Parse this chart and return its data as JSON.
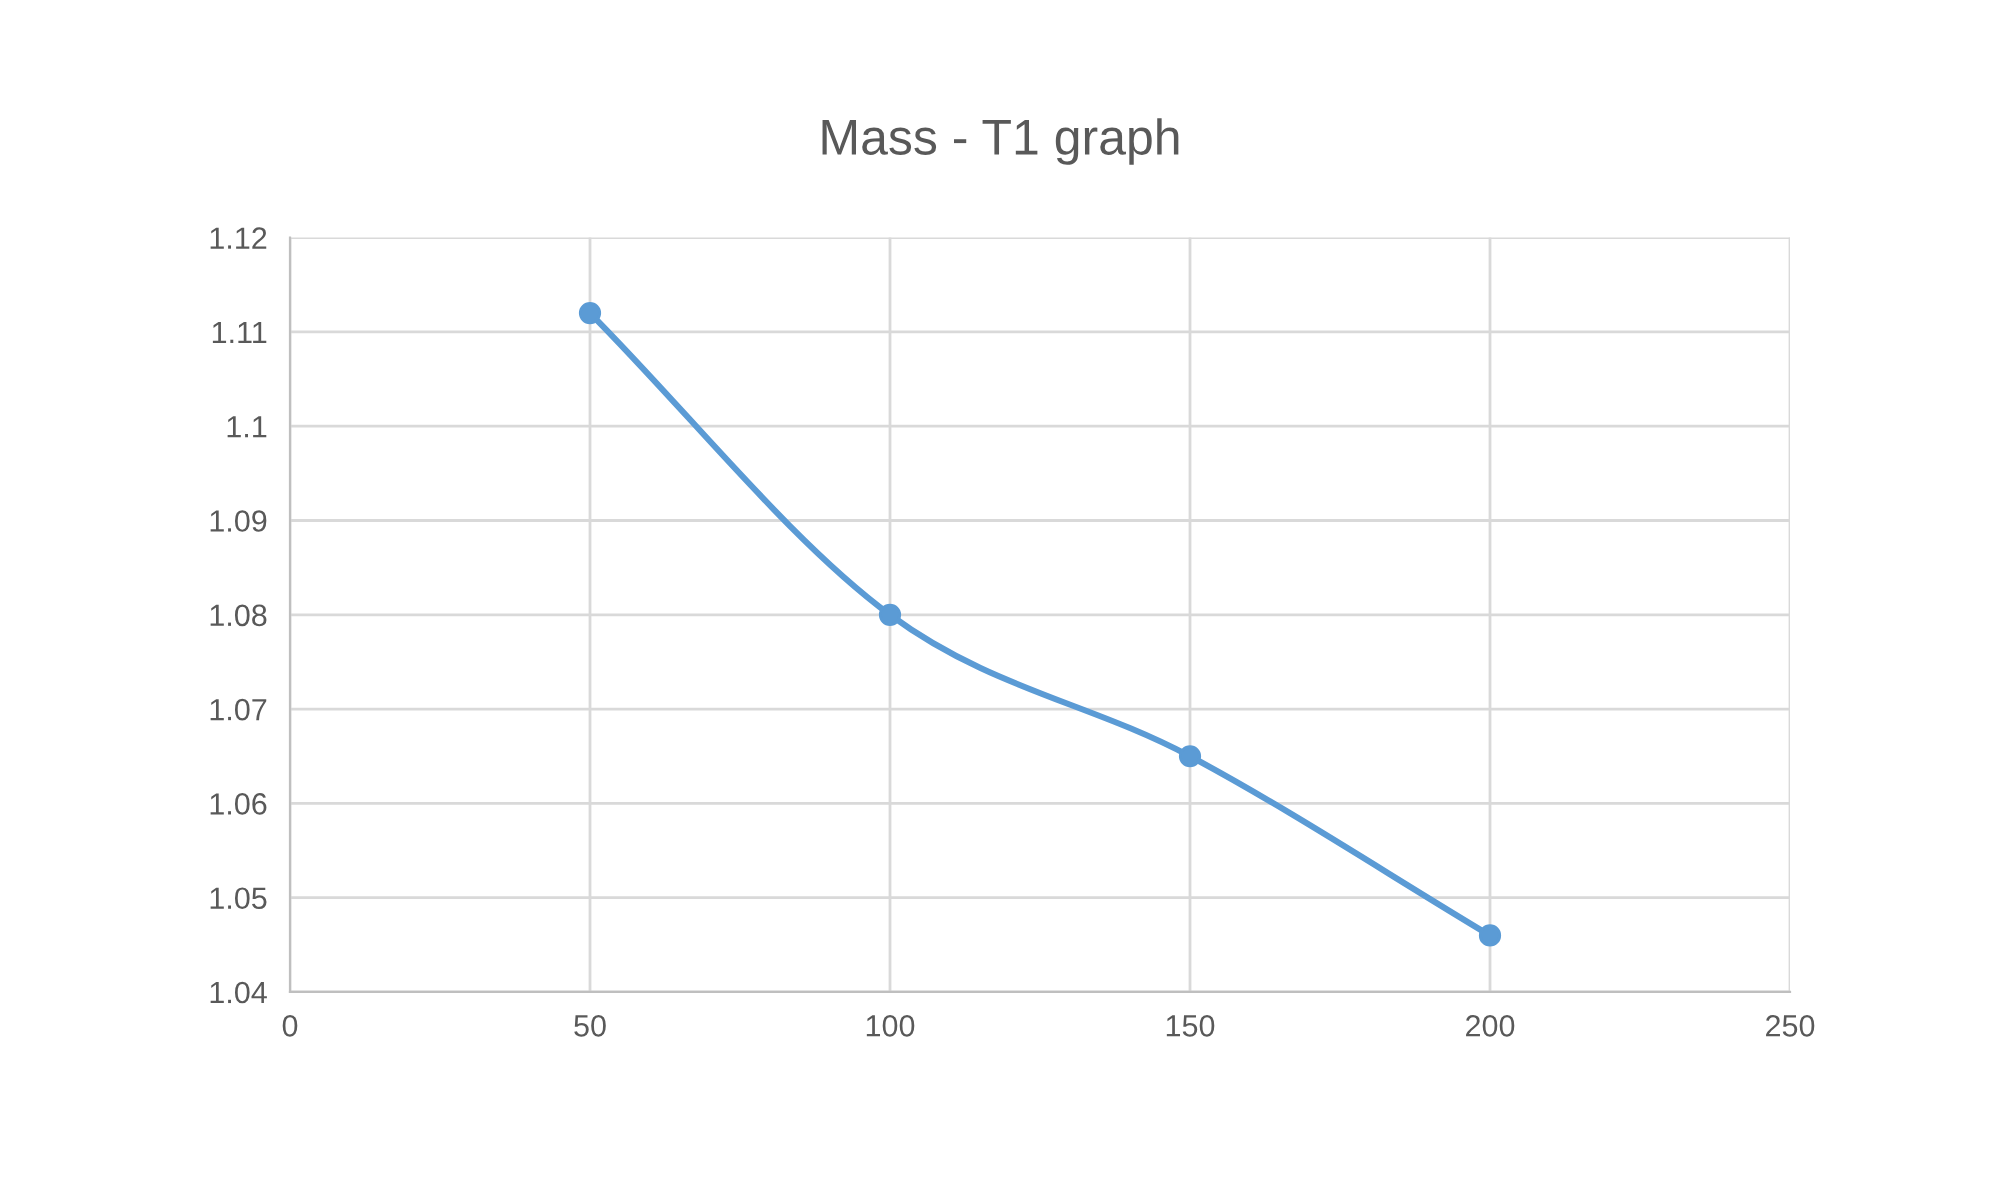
{
  "chart_data": {
    "type": "line",
    "title": "Mass - T1 graph",
    "x": [
      50,
      100,
      150,
      200
    ],
    "series": [
      {
        "color": "#5b9bd5",
        "values": [
          1.112,
          1.08,
          1.065,
          1.046
        ]
      }
    ],
    "xlim": [
      0,
      250
    ],
    "xticks": [
      0,
      50,
      100,
      150,
      200,
      250
    ],
    "ylim": [
      1.04,
      1.12
    ],
    "yticks": [
      1.04,
      1.05,
      1.06,
      1.07,
      1.08,
      1.09,
      1.1,
      1.11,
      1.12
    ],
    "grid": true,
    "marker": "circle",
    "line_style": "solid",
    "legend": false
  }
}
